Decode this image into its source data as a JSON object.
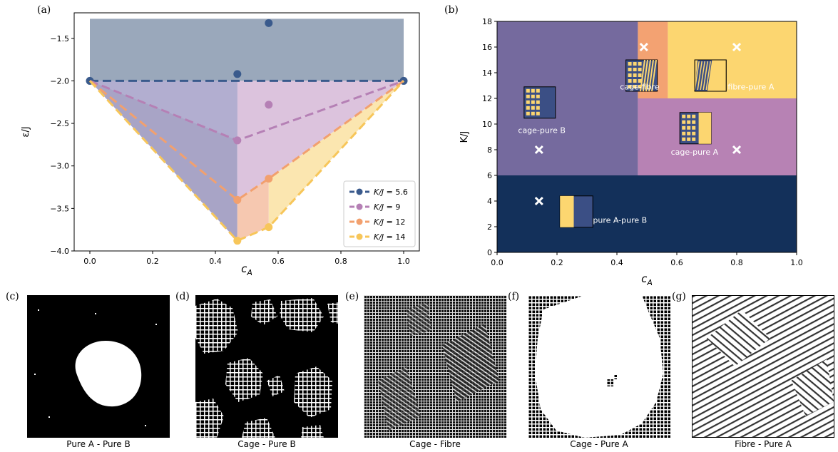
{
  "panels": {
    "a": "(a)",
    "b": "(b)",
    "c": "(c)",
    "d": "(d)",
    "e": "(e)",
    "f": "(f)",
    "g": "(g)"
  },
  "chart_data": [
    {
      "type": "line",
      "panel": "(a)",
      "xlabel": "c_A",
      "ylabel": "ε/J",
      "xlim": [
        -0.05,
        1.05
      ],
      "ylim": [
        -4.0,
        -1.2
      ],
      "xticks": [
        0.0,
        0.2,
        0.4,
        0.6,
        0.8,
        1.0
      ],
      "xtick_labels": [
        "0.0",
        "0.2",
        "0.4",
        "0.6",
        "0.8",
        "1.0"
      ],
      "yticks": [
        -4.0,
        -3.5,
        -3.0,
        -2.5,
        -2.0,
        -1.5
      ],
      "ytick_labels": [
        "−4.0",
        "−3.5",
        "−3.0",
        "−2.5",
        "−2.0",
        "−1.5"
      ],
      "legend_position": "lower-right",
      "series": [
        {
          "name": "K/J = 5.6",
          "color": "#3a5a8c",
          "x": [
            0.0,
            1.0
          ],
          "y": [
            -2.0,
            -2.0
          ],
          "markers_x": [
            0.0,
            0.47,
            0.57,
            1.0
          ],
          "markers_y": [
            -2.0,
            -1.92,
            -1.32,
            -2.0
          ]
        },
        {
          "name": "K/J = 9",
          "color": "#b580b5",
          "x": [
            0.0,
            0.47,
            1.0
          ],
          "y": [
            -2.0,
            -2.7,
            -2.0
          ],
          "markers_x": [
            0.47,
            0.57
          ],
          "markers_y": [
            -2.7,
            -2.28
          ]
        },
        {
          "name": "K/J = 12",
          "color": "#f2a06e",
          "x": [
            0.0,
            0.47,
            0.57,
            1.0
          ],
          "y": [
            -2.0,
            -3.4,
            -3.15,
            -2.0
          ],
          "markers_x": [
            0.47,
            0.57
          ],
          "markers_y": [
            -3.4,
            -3.15
          ]
        },
        {
          "name": "K/J = 14",
          "color": "#f7c65a",
          "x": [
            0.0,
            0.47,
            0.57,
            1.0
          ],
          "y": [
            -2.0,
            -3.88,
            -3.72,
            -2.0
          ],
          "markers_x": [
            0.47,
            0.57
          ],
          "markers_y": [
            -3.88,
            -3.72
          ]
        }
      ],
      "top_region": {
        "color": "#9aa8bb",
        "x": [
          0.0,
          1.0
        ],
        "y": [
          -2.0,
          -1.27
        ]
      }
    },
    {
      "type": "phase-diagram",
      "panel": "(b)",
      "xlabel": "c_A",
      "ylabel": "K/J",
      "xlim": [
        0.0,
        1.0
      ],
      "ylim": [
        0,
        18
      ],
      "xticks": [
        0.0,
        0.2,
        0.4,
        0.6,
        0.8,
        1.0
      ],
      "xtick_labels": [
        "0.0",
        "0.2",
        "0.4",
        "0.6",
        "0.8",
        "1.0"
      ],
      "yticks": [
        0,
        2,
        4,
        6,
        8,
        10,
        12,
        14,
        16,
        18
      ],
      "ytick_labels": [
        "0",
        "2",
        "4",
        "6",
        "8",
        "10",
        "12",
        "14",
        "16",
        "18"
      ],
      "regions": [
        {
          "name": "pure A-pure B",
          "color": "#13305a",
          "x": [
            0.0,
            1.0
          ],
          "y": [
            0,
            6
          ]
        },
        {
          "name": "cage-pure B",
          "color": "#756a9e",
          "x": [
            0.0,
            0.47
          ],
          "y": [
            6,
            18
          ]
        },
        {
          "name": "cage-pure A",
          "color": "#b782b4",
          "x": [
            0.47,
            1.0
          ],
          "y": [
            6,
            12
          ]
        },
        {
          "name": "cage-fibre",
          "color": "#f3a272",
          "x": [
            0.47,
            0.57
          ],
          "y": [
            12,
            18
          ]
        },
        {
          "name": "fibre-pure A",
          "color": "#fcd670",
          "x": [
            0.57,
            1.0
          ],
          "y": [
            12,
            18
          ]
        }
      ],
      "crosses": [
        {
          "x": 0.14,
          "y": 4.0
        },
        {
          "x": 0.14,
          "y": 8.0
        },
        {
          "x": 0.8,
          "y": 8.0
        },
        {
          "x": 0.49,
          "y": 16.0
        },
        {
          "x": 0.8,
          "y": 16.0
        }
      ],
      "labels": [
        "pure A-pure B",
        "cage-pure B",
        "cage-pure A",
        "cage-fibre",
        "fibre-pure A"
      ]
    }
  ],
  "captions": {
    "c": "Pure A - Pure B",
    "d": "Cage - Pure B",
    "e": "Cage - Fibre",
    "f": "Cage - Pure A",
    "g": "Fibre - Pure A"
  }
}
